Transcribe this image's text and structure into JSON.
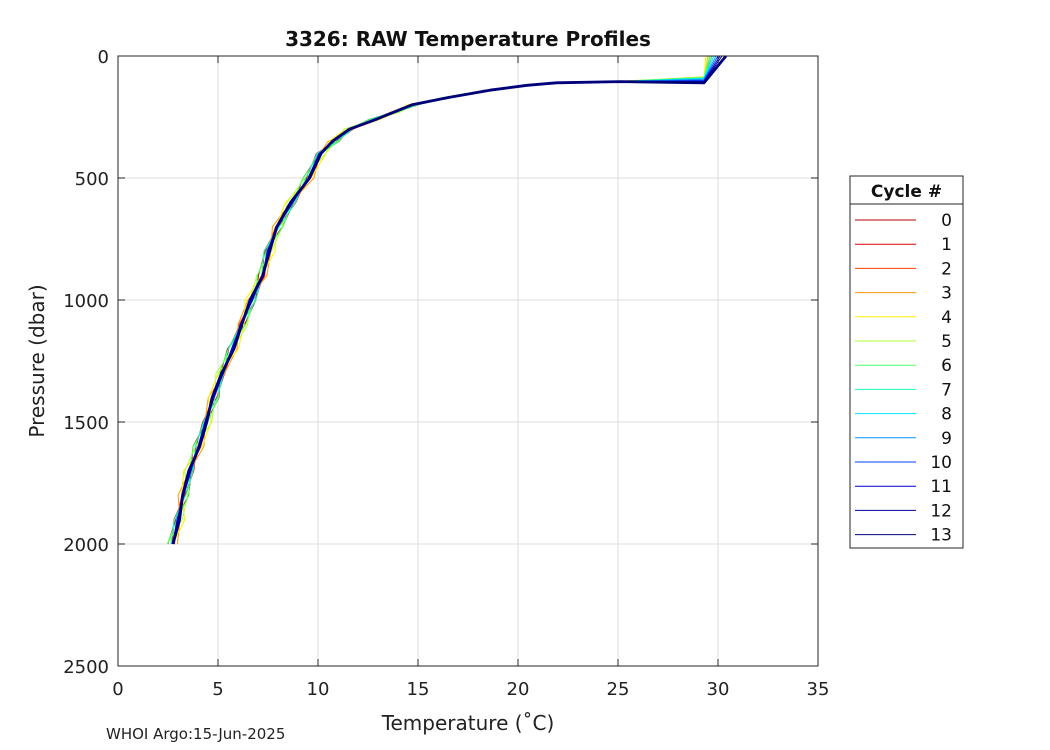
{
  "chart_data": {
    "type": "line",
    "title": "3326: RAW Temperature Profiles",
    "xlabel": "Temperature (˚C)",
    "ylabel": "Pressure (dbar)",
    "xlim": [
      0,
      35
    ],
    "ylim": [
      2500,
      0
    ],
    "y_reversed": true,
    "grid": true,
    "x_ticks": [
      0,
      5,
      10,
      15,
      20,
      25,
      30,
      35
    ],
    "y_ticks": [
      0,
      500,
      1000,
      1500,
      2000,
      2500
    ],
    "legend": {
      "title": "Cycle #",
      "placement": "right-outside",
      "entries": [
        "0",
        "1",
        "2",
        "3",
        "4",
        "5",
        "6",
        "7",
        "8",
        "9",
        "10",
        "11",
        "12",
        "13"
      ]
    },
    "series": [
      {
        "name": "0",
        "color": "#b00000",
        "t_offset": 0.25,
        "ml_depth": 92,
        "surf_temp": 29.7
      },
      {
        "name": "1",
        "color": "#e00000",
        "t_offset": 0.2,
        "ml_depth": 95,
        "surf_temp": 29.6
      },
      {
        "name": "2",
        "color": "#ff4000",
        "t_offset": 0.15,
        "ml_depth": 90,
        "surf_temp": 29.5
      },
      {
        "name": "3",
        "color": "#ff9900",
        "t_offset": 0.3,
        "ml_depth": 88,
        "surf_temp": 29.6
      },
      {
        "name": "4",
        "color": "#ffee00",
        "t_offset": 0.35,
        "ml_depth": 85,
        "surf_temp": 29.4
      },
      {
        "name": "5",
        "color": "#b2ff33",
        "t_offset": 0.3,
        "ml_depth": 86,
        "surf_temp": 29.5
      },
      {
        "name": "6",
        "color": "#4dff66",
        "t_offset": 0.25,
        "ml_depth": 88,
        "surf_temp": 29.6
      },
      {
        "name": "7",
        "color": "#1affb2",
        "t_offset": 0.2,
        "ml_depth": 90,
        "surf_temp": 29.7
      },
      {
        "name": "8",
        "color": "#00e6ff",
        "t_offset": 0.1,
        "ml_depth": 92,
        "surf_temp": 29.8
      },
      {
        "name": "9",
        "color": "#0099ff",
        "t_offset": 0.05,
        "ml_depth": 95,
        "surf_temp": 29.9
      },
      {
        "name": "10",
        "color": "#0040ff",
        "t_offset": 0.0,
        "ml_depth": 100,
        "surf_temp": 30.0
      },
      {
        "name": "11",
        "color": "#0000d9",
        "t_offset": -0.05,
        "ml_depth": 103,
        "surf_temp": 30.1
      },
      {
        "name": "12",
        "color": "#000099",
        "t_offset": -0.1,
        "ml_depth": 106,
        "surf_temp": 30.2
      },
      {
        "name": "13",
        "color": "#00007a",
        "t_offset": -0.1,
        "ml_depth": 110,
        "surf_temp": 30.4
      }
    ],
    "base_profile": [
      {
        "p": 0,
        "t": 30.4
      },
      {
        "p": 40,
        "t": 30.1
      },
      {
        "p": 100,
        "t": 29.4
      },
      {
        "p": 105,
        "t": 25.0
      },
      {
        "p": 110,
        "t": 22.0
      },
      {
        "p": 120,
        "t": 20.5
      },
      {
        "p": 140,
        "t": 18.5
      },
      {
        "p": 170,
        "t": 16.5
      },
      {
        "p": 200,
        "t": 14.8
      },
      {
        "p": 230,
        "t": 13.8
      },
      {
        "p": 260,
        "t": 12.8
      },
      {
        "p": 300,
        "t": 11.6
      },
      {
        "p": 350,
        "t": 10.8
      },
      {
        "p": 400,
        "t": 10.1
      },
      {
        "p": 500,
        "t": 9.5
      },
      {
        "p": 600,
        "t": 8.7
      },
      {
        "p": 700,
        "t": 8.0
      },
      {
        "p": 800,
        "t": 7.5
      },
      {
        "p": 900,
        "t": 7.2
      },
      {
        "p": 1000,
        "t": 6.7
      },
      {
        "p": 1100,
        "t": 6.2
      },
      {
        "p": 1200,
        "t": 5.7
      },
      {
        "p": 1300,
        "t": 5.2
      },
      {
        "p": 1400,
        "t": 4.8
      },
      {
        "p": 1500,
        "t": 4.4
      },
      {
        "p": 1600,
        "t": 4.0
      },
      {
        "p": 1700,
        "t": 3.6
      },
      {
        "p": 1800,
        "t": 3.3
      },
      {
        "p": 1900,
        "t": 3.0
      },
      {
        "p": 2000,
        "t": 2.7
      }
    ]
  },
  "footer": "WHOI Argo:15-Jun-2025"
}
